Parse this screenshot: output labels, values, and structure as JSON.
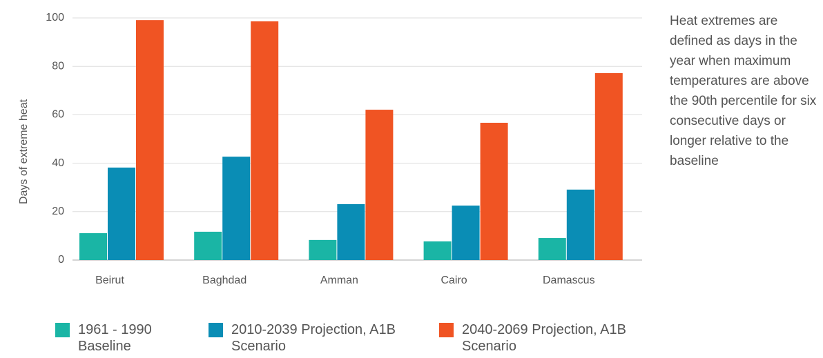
{
  "chart_data": {
    "type": "bar",
    "y_label": "Days of extreme heat",
    "note": "Heat extremes are defined as days in the year when maximum temperatures are above the 90th percentile for six consecutive days or longer relative to the baseline",
    "categories": [
      "Beirut",
      "Baghdad",
      "Amman",
      "Cairo",
      "Damascus"
    ],
    "series": [
      {
        "name": "1961 - 1990 Baseline",
        "color": "#1ab5a5",
        "values": [
          11.1,
          11.7,
          8.3,
          7.7,
          9.1
        ]
      },
      {
        "name": "2010-2039 Projection, A1B Scenario",
        "color": "#0a8db5",
        "values": [
          38.2,
          42.7,
          23.1,
          22.5,
          29.1
        ]
      },
      {
        "name": "2040-2069 Projection, A1B Scenario",
        "color": "#f05423",
        "values": [
          99.1,
          98.6,
          62.1,
          56.7,
          77.2
        ]
      }
    ],
    "ylim": [
      0,
      100
    ],
    "yticks": [
      0,
      20,
      40,
      60,
      80,
      100
    ],
    "grid": true,
    "legend": "bottom"
  }
}
